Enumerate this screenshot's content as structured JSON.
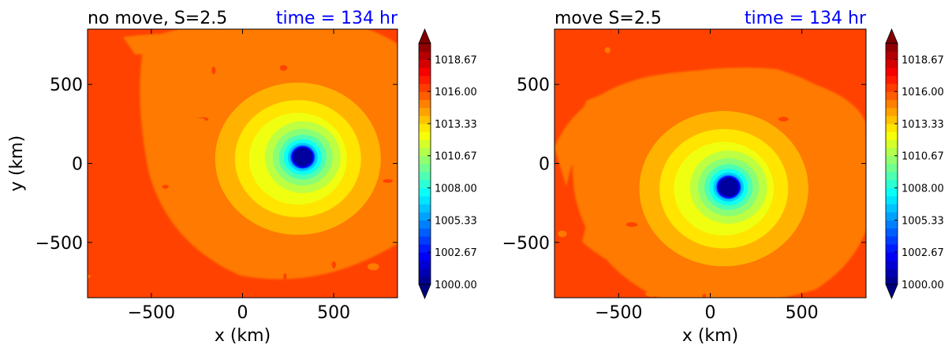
{
  "chart_data": [
    {
      "type": "heatmap",
      "subtype": "filled-contour",
      "title_left": "no move, S=2.5",
      "title_right": "time = 134 hr",
      "title_right_color": "#0000ff",
      "xlabel": "x (km)",
      "ylabel": "y (km)",
      "xlim": [
        -850,
        850
      ],
      "ylim": [
        -850,
        850
      ],
      "xticks": [
        -500,
        0,
        500
      ],
      "xtick_labels": [
        "−500",
        "0",
        "500"
      ],
      "yticks": [
        -500,
        0,
        500
      ],
      "ytick_labels": [
        "−500",
        "0",
        "500"
      ],
      "vortex_center": [
        330,
        40
      ],
      "field": "pressure",
      "colorbar": {
        "min": 1000.0,
        "max": 1020.0,
        "extend": "both",
        "colormap": "jet",
        "tick_values": [
          1000.0,
          1002.67,
          1005.33,
          1008.0,
          1010.67,
          1013.33,
          1016.0,
          1018.67
        ],
        "tick_labels": [
          "1000.00",
          "1002.67",
          "1005.33",
          "1008.00",
          "1010.67",
          "1013.33",
          "1016.00",
          "1018.67"
        ]
      }
    },
    {
      "type": "heatmap",
      "subtype": "filled-contour",
      "title_left": "move S=2.5",
      "title_right": "time = 134 hr",
      "title_right_color": "#0000ff",
      "xlabel": "x (km)",
      "ylabel": "",
      "xlim": [
        -850,
        850
      ],
      "ylim": [
        -850,
        850
      ],
      "xticks": [
        -500,
        0,
        500
      ],
      "xtick_labels": [
        "−500",
        "0",
        "500"
      ],
      "yticks": [
        -500,
        0,
        500
      ],
      "ytick_labels": [
        "−500",
        "0",
        "500"
      ],
      "vortex_center": [
        100,
        -150
      ],
      "field": "pressure",
      "colorbar": {
        "min": 1000.0,
        "max": 1020.0,
        "extend": "both",
        "colormap": "jet",
        "tick_values": [
          1000.0,
          1002.67,
          1005.33,
          1008.0,
          1010.67,
          1013.33,
          1016.0,
          1018.67
        ],
        "tick_labels": [
          "1000.00",
          "1002.67",
          "1005.33",
          "1008.00",
          "1010.67",
          "1013.33",
          "1016.00",
          "1018.67"
        ]
      }
    }
  ]
}
